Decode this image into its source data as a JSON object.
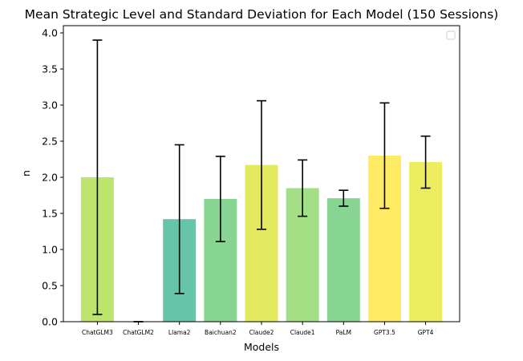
{
  "chart_data": {
    "type": "bar",
    "title": "Mean Strategic Level and Standard Deviation for Each Model (150 Sessions)",
    "xlabel": "Models",
    "ylabel": "n",
    "ylim": [
      0,
      4.1
    ],
    "yticks": [
      0.0,
      0.5,
      1.0,
      1.5,
      2.0,
      2.5,
      3.0,
      3.5,
      4.0
    ],
    "ytick_labels": [
      "0.0",
      "0.5",
      "1.0",
      "1.5",
      "2.0",
      "2.5",
      "3.0",
      "3.5",
      "4.0"
    ],
    "categories": [
      "ChatGLM3",
      "ChatGLM2",
      "Llama2",
      "Baichuan2",
      "Claude2",
      "Claude1",
      "PaLM",
      "GPT3.5",
      "GPT4"
    ],
    "values": [
      2.0,
      0.0,
      1.42,
      1.7,
      2.17,
      1.85,
      1.71,
      2.3,
      2.21
    ],
    "error": [
      1.9,
      0.0,
      1.03,
      0.59,
      0.89,
      0.39,
      0.11,
      0.73,
      0.36
    ],
    "colors": [
      "#bde46c",
      "#bde46c",
      "#66c4a8",
      "#88d593",
      "#e3e95e",
      "#a3e085",
      "#88d593",
      "#feeb63",
      "#edec5f"
    ],
    "errorbar_color": "#000000",
    "legend": {
      "position": "top-right",
      "entries": []
    },
    "grid": false
  }
}
